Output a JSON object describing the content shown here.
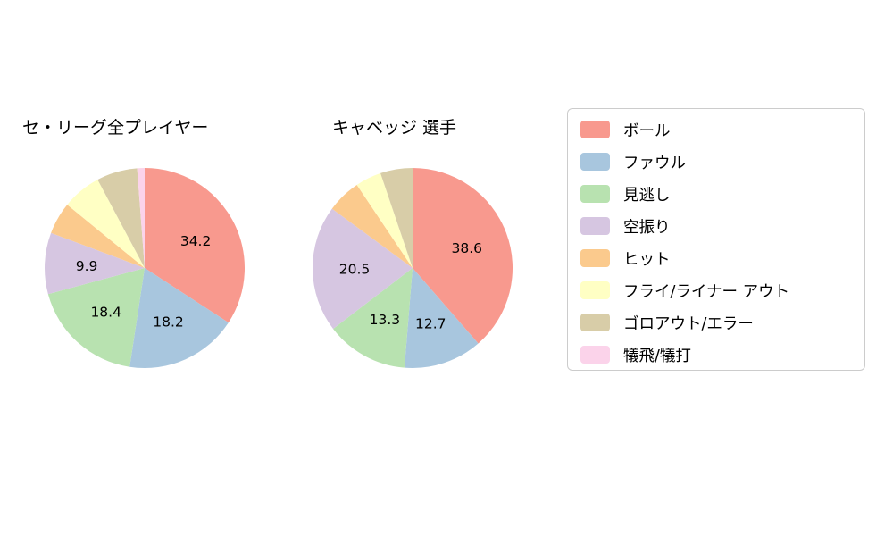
{
  "legend": {
    "items": [
      {
        "label": "ボール",
        "color": "#f8998e"
      },
      {
        "label": "ファウル",
        "color": "#a8c6de"
      },
      {
        "label": "見逃し",
        "color": "#b8e2b0"
      },
      {
        "label": "空振り",
        "color": "#d6c6e1"
      },
      {
        "label": "ヒット",
        "color": "#fbca8d"
      },
      {
        "label": "フライ/ライナー アウト",
        "color": "#ffffc4"
      },
      {
        "label": "ゴロアウト/エラー",
        "color": "#d8cda8"
      },
      {
        "label": "犠飛/犠打",
        "color": "#fbd3ea"
      }
    ]
  },
  "chart_data": [
    {
      "type": "pie",
      "title": "セ・リーグ全プレイヤー",
      "categories": [
        "ボール",
        "ファウル",
        "見逃し",
        "空振り",
        "ヒット",
        "フライ/ライナー アウト",
        "ゴロアウト/エラー",
        "犠飛/犠打"
      ],
      "values": [
        34.2,
        18.2,
        18.4,
        9.9,
        5.2,
        6.3,
        6.6,
        1.2
      ],
      "visible_labels": [
        "34.2",
        "18.2",
        "18.4",
        "9.9"
      ],
      "start_angle": 90,
      "direction": "clockwise",
      "label_threshold": 7,
      "legend_position": "right"
    },
    {
      "type": "pie",
      "title": "キャベッジ 選手",
      "categories": [
        "ボール",
        "ファウル",
        "見逃し",
        "空振り",
        "ヒット",
        "フライ/ライナー アウト",
        "ゴロアウト/エラー",
        "犠飛/犠打"
      ],
      "values": [
        38.6,
        12.7,
        13.3,
        20.5,
        5.5,
        4.2,
        5.2,
        0.0
      ],
      "visible_labels": [
        "38.6",
        "12.7",
        "13.3",
        "20.5"
      ],
      "start_angle": 90,
      "direction": "clockwise",
      "label_threshold": 7,
      "legend_position": "right"
    }
  ]
}
